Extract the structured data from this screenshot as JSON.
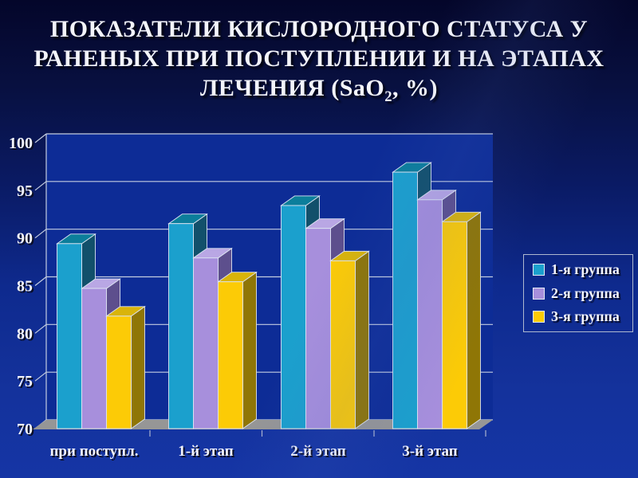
{
  "slide": {
    "title": {
      "line1": "ПОКАЗАТЕЛИ КИСЛОРОДНОГО СТАТУСА У",
      "line2": "РАНЕНЫХ ПРИ ПОСТУПЛЕНИИ И НА ЭТАПАХ",
      "line3_pre": "ЛЕЧЕНИЯ (SaO",
      "line3_sub": "2",
      "line3_post": ", %)"
    },
    "background": {
      "top_color": "#04062a",
      "bottom_color": "#1535a5"
    }
  },
  "chart_data": {
    "type": "bar",
    "title": "ПОКАЗАТЕЛИ КИСЛОРОДНОГО СТАТУСА У РАНЕНЫХ ПРИ ПОСТУПЛЕНИИ И НА ЭТАПАХ ЛЕЧЕНИЯ (SaO2, %)",
    "categories": [
      "при поступл.",
      "1-й этап",
      "2-й этап",
      "3-й этап"
    ],
    "series": [
      {
        "name": "1-я группа",
        "colors": {
          "front": "#1BA0CD",
          "top": "#0C7E9B",
          "side": "#12506B"
        },
        "values": [
          89.4,
          91.5,
          93.4,
          96.9
        ]
      },
      {
        "name": "2-я группа",
        "colors": {
          "front": "#A78FDC",
          "top": "#B9A7E4",
          "side": "#5D4F8D"
        },
        "values": [
          84.7,
          87.9,
          91.0,
          94.0
        ]
      },
      {
        "name": "3-я группа",
        "colors": {
          "front": "#FCCB06",
          "top": "#D9B40A",
          "side": "#8F7606"
        },
        "values": [
          81.8,
          85.4,
          87.6,
          91.7
        ]
      }
    ],
    "ylim": [
      70,
      100
    ],
    "yticks": [
      70,
      75,
      80,
      85,
      90,
      95,
      100
    ],
    "grid": true,
    "legend_position": "right",
    "axis_text_color": "#f3f4fa",
    "gridline_color": "#c4cde0",
    "wall_color": "#0d2c96",
    "floor_color": "#969696"
  }
}
